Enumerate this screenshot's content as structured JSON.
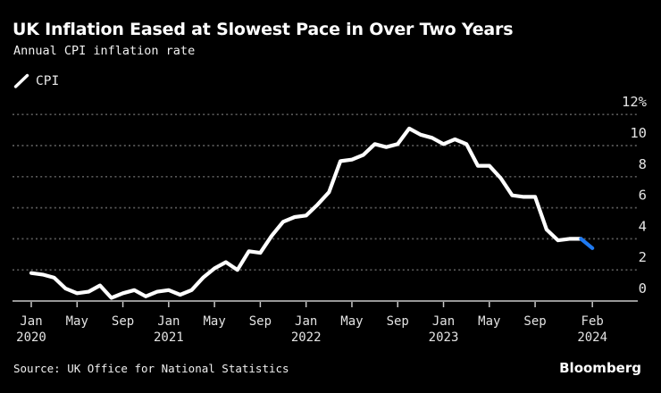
{
  "header": {
    "title": "UK Inflation Eased at Slowest Pace in Over Two Years",
    "subtitle": "Annual CPI inflation rate"
  },
  "footer": {
    "source": "Source: UK Office for National Statistics",
    "brand": "Bloomberg"
  },
  "colors": {
    "background": "#000000",
    "line": "#ffffff",
    "recent_segment": "#1f79f0",
    "grid": "#5a5a5a",
    "axis": "#c9c9c9",
    "tick_label": "#e3e3e3"
  },
  "chart_data": {
    "type": "line",
    "title": "UK Inflation Eased at Slowest Pace in Over Two Years",
    "subtitle": "Annual CPI inflation rate",
    "unit": "%",
    "grid": "horizontal-dotted",
    "legend_position": "top-left",
    "legend": [
      {
        "name": "CPI",
        "color": "#ffffff",
        "marker": "diagonal-line-swatch"
      }
    ],
    "ylim": [
      0,
      12
    ],
    "yticks": [
      {
        "v": 0,
        "label": "0"
      },
      {
        "v": 2,
        "label": "2"
      },
      {
        "v": 4,
        "label": "4"
      },
      {
        "v": 6,
        "label": "6"
      },
      {
        "v": 8,
        "label": "8"
      },
      {
        "v": 10,
        "label": "10"
      },
      {
        "v": 12,
        "label": "12%"
      }
    ],
    "xticks": [
      {
        "m": 0,
        "label": "Jan",
        "year": "2020"
      },
      {
        "m": 4,
        "label": "May"
      },
      {
        "m": 8,
        "label": "Sep"
      },
      {
        "m": 12,
        "label": "Jan",
        "year": "2021"
      },
      {
        "m": 16,
        "label": "May"
      },
      {
        "m": 20,
        "label": "Sep"
      },
      {
        "m": 24,
        "label": "Jan",
        "year": "2022"
      },
      {
        "m": 28,
        "label": "May"
      },
      {
        "m": 32,
        "label": "Sep"
      },
      {
        "m": 36,
        "label": "Jan",
        "year": "2023"
      },
      {
        "m": 40,
        "label": "May"
      },
      {
        "m": 44,
        "label": "Sep"
      },
      {
        "m": 49,
        "label": "Feb",
        "year": "2024"
      }
    ],
    "x_months": [
      "Jan 2020",
      "Feb 2020",
      "Mar 2020",
      "Apr 2020",
      "May 2020",
      "Jun 2020",
      "Jul 2020",
      "Aug 2020",
      "Sep 2020",
      "Oct 2020",
      "Nov 2020",
      "Dec 2020",
      "Jan 2021",
      "Feb 2021",
      "Mar 2021",
      "Apr 2021",
      "May 2021",
      "Jun 2021",
      "Jul 2021",
      "Aug 2021",
      "Sep 2021",
      "Oct 2021",
      "Nov 2021",
      "Dec 2021",
      "Jan 2022",
      "Feb 2022",
      "Mar 2022",
      "Apr 2022",
      "May 2022",
      "Jun 2022",
      "Jul 2022",
      "Aug 2022",
      "Sep 2022",
      "Oct 2022",
      "Nov 2022",
      "Dec 2022",
      "Jan 2023",
      "Feb 2023",
      "Mar 2023",
      "Apr 2023",
      "May 2023",
      "Jun 2023",
      "Jul 2023",
      "Aug 2023",
      "Sep 2023",
      "Oct 2023",
      "Nov 2023",
      "Dec 2023",
      "Jan 2024",
      "Feb 2024"
    ],
    "series": [
      {
        "name": "CPI",
        "values": [
          1.8,
          1.7,
          1.5,
          0.8,
          0.5,
          0.6,
          1.0,
          0.2,
          0.5,
          0.7,
          0.3,
          0.6,
          0.7,
          0.4,
          0.7,
          1.5,
          2.1,
          2.5,
          2.0,
          3.2,
          3.1,
          4.2,
          5.1,
          5.4,
          5.5,
          6.2,
          7.0,
          9.0,
          9.1,
          9.4,
          10.1,
          9.9,
          10.1,
          11.1,
          10.7,
          10.5,
          10.1,
          10.4,
          10.1,
          8.7,
          8.7,
          7.9,
          6.8,
          6.7,
          6.7,
          4.6,
          3.9,
          4.0,
          4.0,
          3.4
        ]
      }
    ],
    "highlight_last_segment": true
  }
}
